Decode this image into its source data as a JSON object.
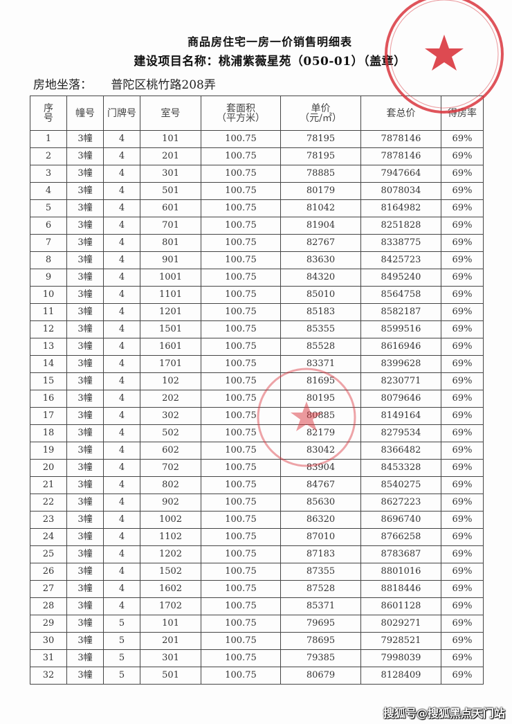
{
  "document": {
    "title": "商品房住宅一房一价销售明细表",
    "project_line": "建设项目名称：桃浦紫薇星苑（050-01）（盖章）",
    "location_label": "房地坐落：",
    "location_value": "普陀区桃竹路208弄"
  },
  "table": {
    "headers": [
      "序号",
      "幢号",
      "门牌号",
      "室号",
      "套面积（平方米）",
      "单价（元/㎡）",
      "套总价",
      "得房率"
    ],
    "rows": [
      [
        "1",
        "3幢",
        "4",
        "101",
        "100.75",
        "78195",
        "7878146",
        "69%"
      ],
      [
        "2",
        "3幢",
        "4",
        "201",
        "100.75",
        "78195",
        "7878146",
        "69%"
      ],
      [
        "3",
        "3幢",
        "4",
        "301",
        "100.75",
        "78885",
        "7947664",
        "69%"
      ],
      [
        "4",
        "3幢",
        "4",
        "501",
        "100.75",
        "80179",
        "8078034",
        "69%"
      ],
      [
        "5",
        "3幢",
        "4",
        "601",
        "100.75",
        "81042",
        "8164982",
        "69%"
      ],
      [
        "6",
        "3幢",
        "4",
        "701",
        "100.75",
        "81904",
        "8251828",
        "69%"
      ],
      [
        "7",
        "3幢",
        "4",
        "801",
        "100.75",
        "82767",
        "8338775",
        "69%"
      ],
      [
        "8",
        "3幢",
        "4",
        "901",
        "100.75",
        "83630",
        "8425723",
        "69%"
      ],
      [
        "9",
        "3幢",
        "4",
        "1001",
        "100.75",
        "84320",
        "8495240",
        "69%"
      ],
      [
        "10",
        "3幢",
        "4",
        "1101",
        "100.75",
        "85010",
        "8564758",
        "69%"
      ],
      [
        "11",
        "3幢",
        "4",
        "1201",
        "100.75",
        "85183",
        "8582187",
        "69%"
      ],
      [
        "12",
        "3幢",
        "4",
        "1501",
        "100.75",
        "85355",
        "8599516",
        "69%"
      ],
      [
        "13",
        "3幢",
        "4",
        "1601",
        "100.75",
        "85528",
        "8616946",
        "69%"
      ],
      [
        "14",
        "3幢",
        "4",
        "1701",
        "100.75",
        "83371",
        "8399628",
        "69%"
      ],
      [
        "15",
        "3幢",
        "4",
        "102",
        "100.75",
        "81695",
        "8230771",
        "69%"
      ],
      [
        "16",
        "3幢",
        "4",
        "202",
        "100.75",
        "80195",
        "8079646",
        "69%"
      ],
      [
        "17",
        "3幢",
        "4",
        "302",
        "100.75",
        "80885",
        "8149164",
        "69%"
      ],
      [
        "18",
        "3幢",
        "4",
        "502",
        "100.75",
        "82179",
        "8279534",
        "69%"
      ],
      [
        "19",
        "3幢",
        "4",
        "602",
        "100.75",
        "83042",
        "8366482",
        "69%"
      ],
      [
        "20",
        "3幢",
        "4",
        "702",
        "100.75",
        "83904",
        "8453328",
        "69%"
      ],
      [
        "21",
        "3幢",
        "4",
        "802",
        "100.75",
        "84767",
        "8540275",
        "69%"
      ],
      [
        "22",
        "3幢",
        "4",
        "902",
        "100.75",
        "85630",
        "8627223",
        "69%"
      ],
      [
        "23",
        "3幢",
        "4",
        "1002",
        "100.75",
        "86320",
        "8696740",
        "69%"
      ],
      [
        "24",
        "3幢",
        "4",
        "1102",
        "100.75",
        "87010",
        "8766258",
        "69%"
      ],
      [
        "25",
        "3幢",
        "4",
        "1202",
        "100.75",
        "87183",
        "8783687",
        "69%"
      ],
      [
        "26",
        "3幢",
        "4",
        "1502",
        "100.75",
        "87355",
        "8801016",
        "69%"
      ],
      [
        "27",
        "3幢",
        "4",
        "1602",
        "100.75",
        "87528",
        "8818446",
        "69%"
      ],
      [
        "28",
        "3幢",
        "4",
        "1702",
        "100.75",
        "85371",
        "8601128",
        "69%"
      ],
      [
        "29",
        "3幢",
        "5",
        "101",
        "100.75",
        "79695",
        "8029271",
        "69%"
      ],
      [
        "30",
        "3幢",
        "5",
        "201",
        "100.75",
        "78695",
        "7928521",
        "69%"
      ],
      [
        "31",
        "3幢",
        "5",
        "301",
        "100.75",
        "79385",
        "7998039",
        "69%"
      ],
      [
        "32",
        "3幢",
        "5",
        "501",
        "100.75",
        "80679",
        "8128409",
        "69%"
      ]
    ]
  },
  "stamp": {
    "color": "#d9363e",
    "icon": "star-icon"
  },
  "watermark": "搜狐号@搜狐黑点天门站"
}
